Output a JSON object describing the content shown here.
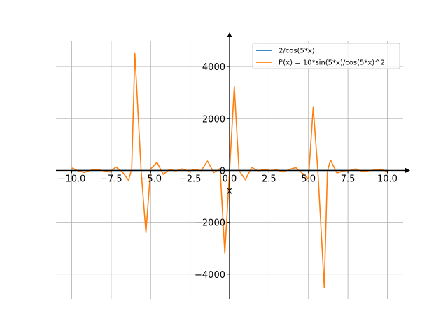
{
  "chart_data": {
    "type": "line",
    "title": "",
    "xlabel": "x",
    "ylabel": "",
    "xlim": [
      -11.0,
      11.0
    ],
    "ylim": [
      -4950,
      5000
    ],
    "grid": true,
    "legend_position": "top-right",
    "x_ticks": [
      -10.0,
      -7.5,
      -5.0,
      -2.5,
      0.0,
      2.5,
      5.0,
      7.5,
      10.0
    ],
    "x_tick_labels": [
      "−10.0",
      "−7.5",
      "−5.0",
      "−2.5",
      "0.0",
      "2.5",
      "5.0",
      "7.5",
      "10.0"
    ],
    "y_ticks": [
      -4000,
      -2000,
      0,
      2000,
      4000
    ],
    "y_tick_labels": [
      "−4000",
      "−2000",
      "0",
      "2000",
      "4000"
    ],
    "series": [
      {
        "name": "2/cos(5*x)",
        "color": "#1f77b4",
        "x": [
          -10.0,
          -9.5,
          -9.0,
          -8.5,
          -8.0,
          -7.5,
          -7.0,
          -6.5,
          -6.0,
          -5.5,
          -5.0,
          -4.5,
          -4.0,
          -3.5,
          -3.0,
          -2.5,
          -2.0,
          -1.5,
          -1.0,
          -0.5,
          0.0,
          0.5,
          1.0,
          1.5,
          2.0,
          2.5,
          3.0,
          3.5,
          4.0,
          4.5,
          5.0,
          5.5,
          6.0,
          6.5,
          7.0,
          7.5,
          8.0,
          8.5,
          9.0,
          9.5,
          10.0
        ],
        "y": [
          0,
          0,
          0,
          0,
          0,
          0,
          0,
          0,
          0,
          0,
          0,
          0,
          0,
          0,
          0,
          0,
          0,
          0,
          0,
          0,
          0,
          0,
          0,
          0,
          0,
          0,
          0,
          0,
          0,
          0,
          0,
          0,
          0,
          0,
          0,
          0,
          0,
          0,
          0,
          0,
          0
        ]
      },
      {
        "name": "f'(x) = 10*sin(5*x)/cos(5*x)^2",
        "color": "#ff7f0e",
        "x": [
          -10.0,
          -9.6,
          -9.2,
          -8.8,
          -8.4,
          -8.0,
          -7.6,
          -7.2,
          -6.8,
          -6.4,
          -6.2,
          -6.0,
          -5.6,
          -5.3,
          -5.0,
          -4.6,
          -4.2,
          -3.8,
          -3.4,
          -3.0,
          -2.6,
          -2.2,
          -1.8,
          -1.4,
          -1.0,
          -0.6,
          -0.3,
          0.0,
          0.3,
          0.6,
          1.0,
          1.4,
          1.8,
          2.2,
          2.6,
          3.0,
          3.4,
          3.8,
          4.2,
          4.6,
          5.0,
          5.3,
          5.6,
          6.0,
          6.2,
          6.4,
          6.8,
          7.2,
          7.6,
          8.0,
          8.4,
          8.8,
          9.2,
          9.6,
          10.0
        ],
        "y": [
          100,
          -10,
          -80,
          10,
          40,
          -10,
          -60,
          130,
          -50,
          -380,
          60,
          4500,
          -40,
          -2400,
          60,
          310,
          -150,
          40,
          -20,
          60,
          -20,
          40,
          -10,
          360,
          -80,
          70,
          -3200,
          0,
          3230,
          0,
          -360,
          120,
          -20,
          40,
          0,
          20,
          -60,
          40,
          110,
          -100,
          -330,
          2430,
          -40,
          -4500,
          -30,
          400,
          -100,
          -20,
          0,
          60,
          -40,
          -10,
          20,
          50,
          -60
        ]
      }
    ]
  }
}
